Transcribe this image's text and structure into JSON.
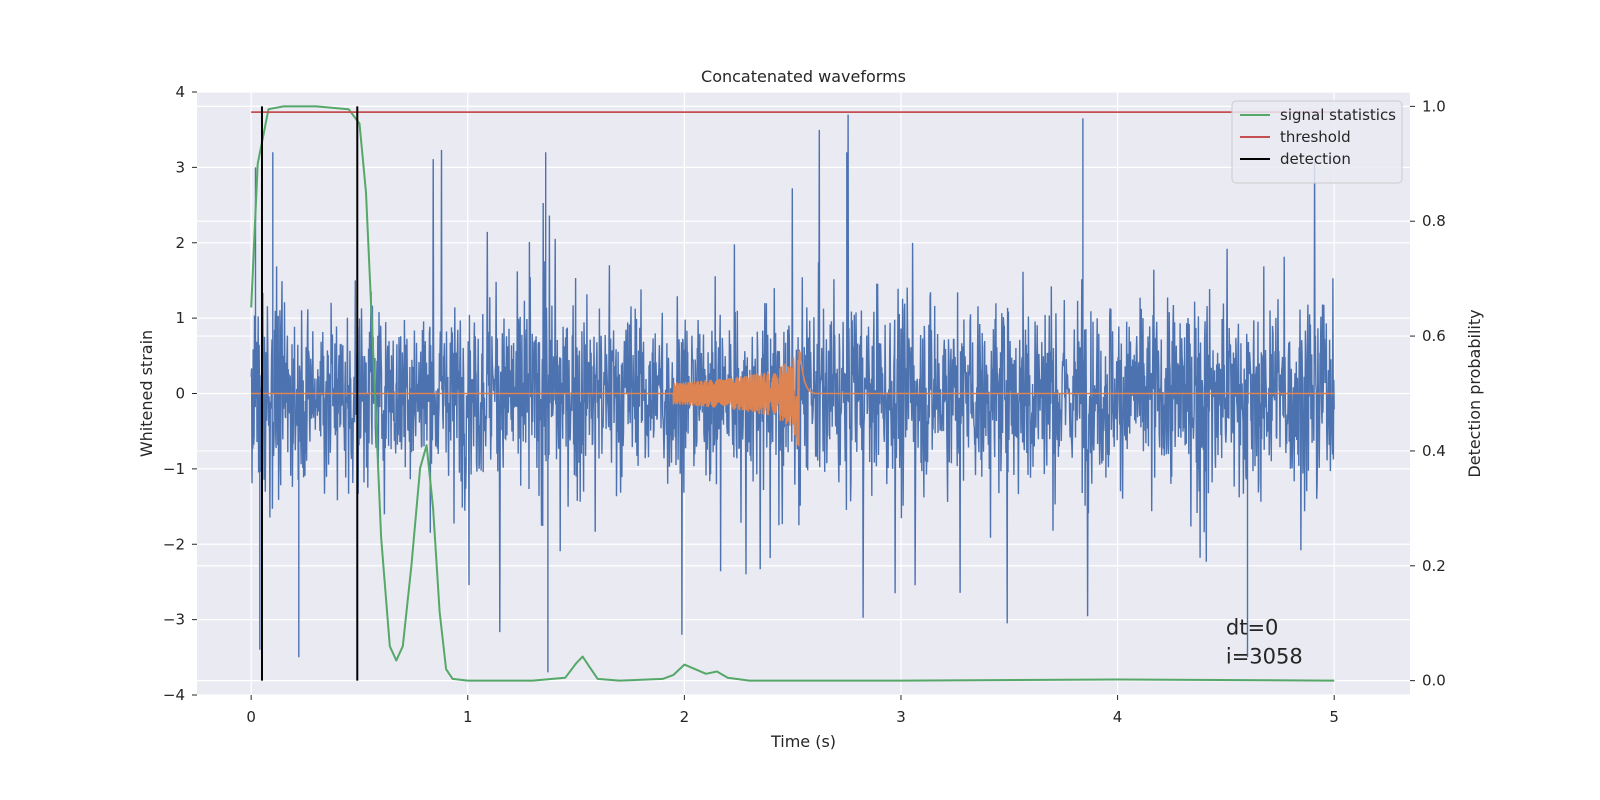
{
  "chart_data": {
    "type": "line",
    "title": "Concatenated waveforms",
    "xlabel": "Time (s)",
    "ylabel": "Whitened strain",
    "y2label": "Detection probability",
    "xlim": [
      -0.25,
      5.35
    ],
    "ylim": [
      -4.0,
      4.0
    ],
    "y2lim": [
      -0.025,
      1.025
    ],
    "xticks": [
      0,
      1,
      2,
      3,
      4,
      5
    ],
    "yticks": [
      -4,
      -3,
      -2,
      -1,
      0,
      1,
      2,
      3,
      4
    ],
    "y2ticks": [
      0.0,
      0.2,
      0.4,
      0.6,
      0.8,
      1.0
    ],
    "y2ticklabels": [
      "0.0",
      "0.2",
      "0.4",
      "0.6",
      "0.8",
      "1.0"
    ],
    "grid": true,
    "legend_position": "top-right",
    "series": [
      {
        "name": "",
        "axis": "left",
        "color": "#4c72b0",
        "description_kind": "whitened noise strain",
        "x_range": [
          0,
          5
        ],
        "amplitude_typical": 1.5,
        "amplitude_peak": 3.7
      },
      {
        "name": "",
        "axis": "left",
        "color": "#dd8452",
        "description_kind": "injected chirp",
        "x": [
          0,
          2.0,
          2.1,
          2.2,
          2.3,
          2.4,
          2.5,
          2.53,
          2.6,
          5
        ],
        "y_envelope": [
          0,
          0.15,
          0.18,
          0.2,
          0.25,
          0.3,
          0.45,
          0.8,
          0.02,
          0
        ]
      },
      {
        "name": "signal statistics",
        "axis": "right",
        "color": "#55a868",
        "x": [
          0.0,
          0.03,
          0.08,
          0.15,
          0.3,
          0.45,
          0.5,
          0.53,
          0.56,
          0.6,
          0.64,
          0.67,
          0.7,
          0.74,
          0.78,
          0.81,
          0.84,
          0.87,
          0.9,
          0.93,
          1.0,
          1.3,
          1.45,
          1.5,
          1.53,
          1.56,
          1.6,
          1.7,
          1.9,
          1.95,
          2.0,
          2.05,
          2.1,
          2.15,
          2.2,
          2.3,
          3.0,
          4.0,
          5.0
        ],
        "y": [
          0.65,
          0.9,
          0.995,
          1.0,
          1.0,
          0.995,
          0.97,
          0.85,
          0.6,
          0.25,
          0.06,
          0.035,
          0.06,
          0.2,
          0.37,
          0.41,
          0.3,
          0.12,
          0.02,
          0.003,
          0.0,
          0.0,
          0.005,
          0.03,
          0.042,
          0.025,
          0.003,
          0.0,
          0.003,
          0.01,
          0.028,
          0.02,
          0.012,
          0.016,
          0.005,
          0.0,
          0.0,
          0.002,
          0.0
        ]
      },
      {
        "name": "threshold",
        "axis": "right",
        "color": "#c44e52",
        "x": [
          0.0,
          5.0
        ],
        "y": [
          0.99,
          0.99
        ]
      },
      {
        "name": "detection",
        "axis": "right",
        "color": "#000000",
        "type": "vlines",
        "x": [
          0.05,
          0.49
        ],
        "ymin": 0.0,
        "ymax": 1.0
      }
    ],
    "annotations": [
      "dt=0",
      "i=3058"
    ],
    "background_color": "#eaeaf2"
  }
}
